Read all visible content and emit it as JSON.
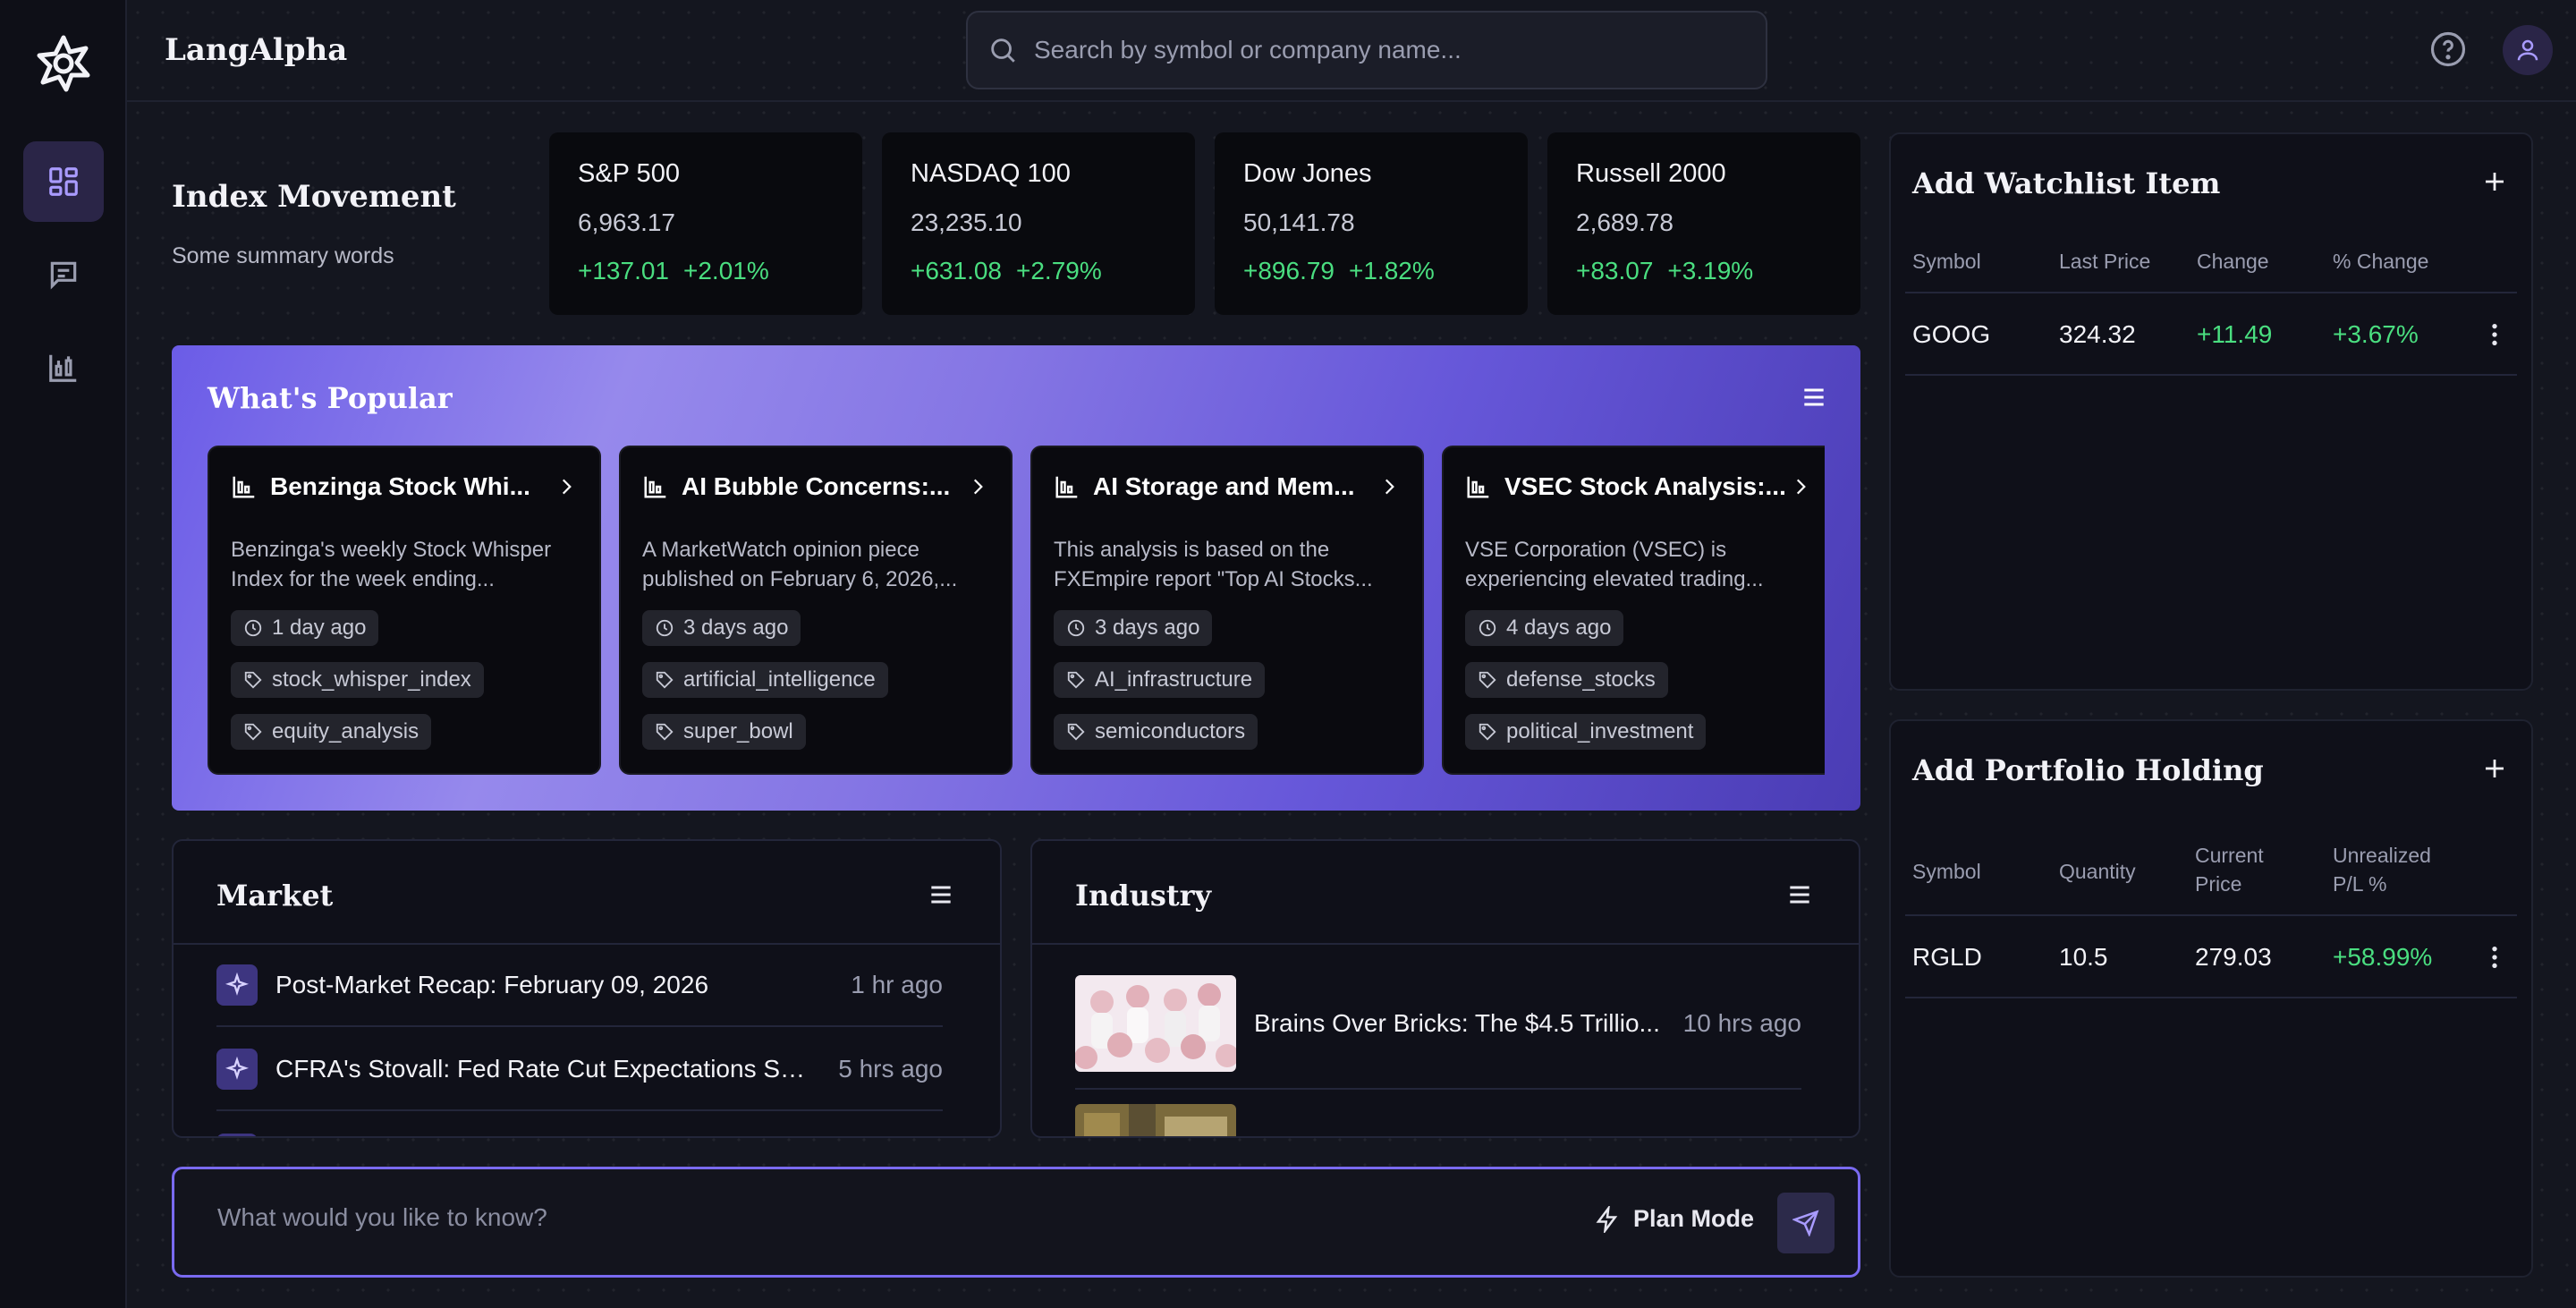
{
  "app": {
    "brand": "LangAlpha"
  },
  "search": {
    "placeholder": "Search by symbol or company name..."
  },
  "sidebar": {
    "items": [
      {
        "name": "dashboard",
        "icon": "dashboard-grid-icon",
        "active": true
      },
      {
        "name": "chat",
        "icon": "chat-icon",
        "active": false
      },
      {
        "name": "charts",
        "icon": "chart-icon",
        "active": false
      }
    ]
  },
  "index_movement": {
    "title": "Index Movement",
    "subtitle": "Some summary words",
    "cards": [
      {
        "name": "S&P 500",
        "value": "6,963.17",
        "change": "+137.01",
        "pct": "+2.01%"
      },
      {
        "name": "NASDAQ 100",
        "value": "23,235.10",
        "change": "+631.08",
        "pct": "+2.79%"
      },
      {
        "name": "Dow Jones",
        "value": "50,141.78",
        "change": "+896.79",
        "pct": "+1.82%"
      },
      {
        "name": "Russell 2000",
        "value": "2,689.78",
        "change": "+83.07",
        "pct": "+3.19%"
      }
    ]
  },
  "popular": {
    "title": "What's Popular",
    "cards": [
      {
        "title": "Benzinga Stock Whi...",
        "desc": "Benzinga's weekly Stock Whisper Index for the week ending...",
        "time": "1 day ago",
        "tags": [
          "stock_whisper_index",
          "equity_analysis"
        ]
      },
      {
        "title": "AI Bubble Concerns:...",
        "desc": "A MarketWatch opinion piece published on February 6, 2026,...",
        "time": "3 days ago",
        "tags": [
          "artificial_intelligence",
          "super_bowl"
        ]
      },
      {
        "title": "AI Storage and Mem...",
        "desc": "This analysis is based on the FXEmpire report \"Top AI Stocks...",
        "time": "3 days ago",
        "tags": [
          "AI_infrastructure",
          "semiconductors"
        ]
      },
      {
        "title": "VSEC Stock Analysis:...",
        "desc": "VSE Corporation (VSEC) is experiencing elevated trading...",
        "time": "4 days ago",
        "tags": [
          "defense_stocks",
          "political_investment"
        ]
      }
    ]
  },
  "market": {
    "title": "Market",
    "items": [
      {
        "title": "Post-Market Recap: February 09, 2026",
        "time": "1 hr ago"
      },
      {
        "title": "CFRA's Stovall: Fed Rate Cut Expectations Supp...",
        "time": "5 hrs ago"
      }
    ]
  },
  "industry": {
    "title": "Industry",
    "items": [
      {
        "title": "Brains Over Bricks: The $4.5 Trillio...",
        "time": "10 hrs ago"
      }
    ]
  },
  "chat": {
    "placeholder": "What would you like to know?",
    "plan_mode": "Plan Mode"
  },
  "watchlist": {
    "title": "Add Watchlist Item",
    "columns": [
      "Symbol",
      "Last Price",
      "Change",
      "% Change"
    ],
    "rows": [
      {
        "symbol": "GOOG",
        "last": "324.32",
        "change": "+11.49",
        "pct": "+3.67%"
      }
    ]
  },
  "portfolio": {
    "title": "Add Portfolio Holding",
    "columns": [
      "Symbol",
      "Quantity",
      "Current Price",
      "Unrealized P/L %"
    ],
    "rows": [
      {
        "symbol": "RGLD",
        "qty": "10.5",
        "price": "279.03",
        "pl": "+58.99%"
      }
    ]
  },
  "colors": {
    "accent": "#7a6af0",
    "positive": "#4ade80",
    "background": "#14161f"
  }
}
